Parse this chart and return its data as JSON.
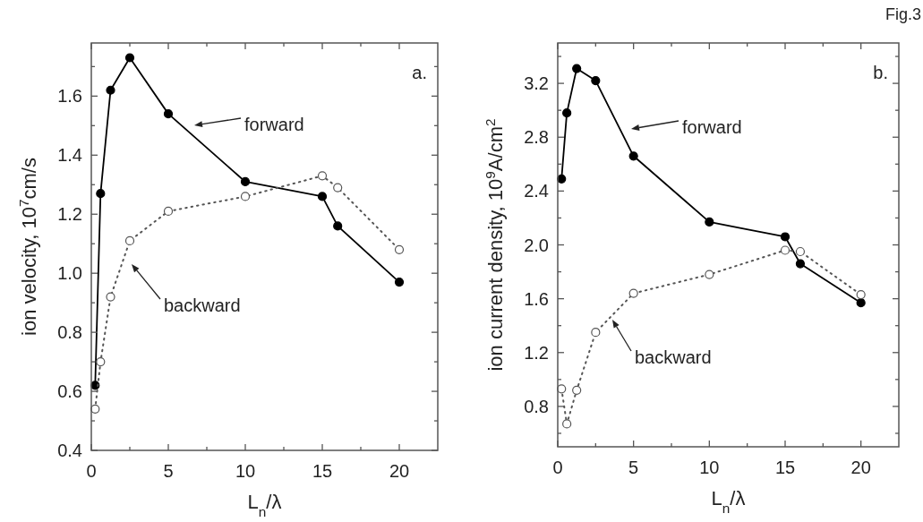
{
  "chart_data": [
    {
      "type": "line",
      "xlabel": "L$_{n}$/λ",
      "ylabel": "ion velocity, 10$^{7}$cm/s",
      "xlim": [
        0,
        22.5
      ],
      "ylim": [
        0.4,
        1.78
      ],
      "xticks": [
        0,
        {
          "value": 2.5,
          "label": null
        },
        5,
        {
          "value": 7.5,
          "label": null
        },
        10,
        {
          "value": 12.5,
          "label": null
        },
        15,
        {
          "value": 17.5,
          "label": null
        },
        20
      ],
      "yticks": [
        {
          "value": 0.4,
          "label": "0.4"
        },
        {
          "value": 0.5,
          "label": null
        },
        {
          "value": 0.6,
          "label": "0.6"
        },
        {
          "value": 0.7,
          "label": null
        },
        {
          "value": 0.8,
          "label": "0.8"
        },
        {
          "value": 0.9,
          "label": null
        },
        {
          "value": 1.0,
          "label": "1.0"
        },
        {
          "value": 1.1,
          "label": null
        },
        {
          "value": 1.2,
          "label": "1.2"
        },
        {
          "value": 1.3,
          "label": null
        },
        {
          "value": 1.4,
          "label": "1.4"
        },
        {
          "value": 1.5,
          "label": null
        },
        {
          "value": 1.6,
          "label": "1.6"
        },
        {
          "value": 1.7,
          "label": null
        }
      ],
      "grid": false,
      "marker": "circle",
      "series": [
        {
          "name": "forward",
          "color": "#000000",
          "line_style": "solid",
          "x": [
            0.25,
            0.6,
            1.25,
            2.5,
            5,
            10,
            15,
            16,
            20
          ],
          "values": [
            0.62,
            1.27,
            1.62,
            1.73,
            1.54,
            1.31,
            1.26,
            1.16,
            0.97
          ]
        },
        {
          "name": "backward",
          "color": "#555555",
          "line_style": "dotted",
          "x": [
            0.25,
            0.6,
            1.25,
            2.5,
            5,
            10,
            15,
            16,
            20
          ],
          "values": [
            0.54,
            0.7,
            0.92,
            1.11,
            1.21,
            1.26,
            1.33,
            1.29,
            1.08
          ]
        }
      ],
      "annotations": [
        "a."
      ]
    },
    {
      "type": "line",
      "xlabel": "L$_{n}$/λ",
      "ylabel": "ion current density, 10$^{9}$A/cm$^{2}$",
      "xlim": [
        0,
        22.5
      ],
      "ylim": [
        0.5,
        3.5
      ],
      "xticks": [
        0,
        {
          "value": 2.5,
          "label": null
        },
        5,
        {
          "value": 7.5,
          "label": null
        },
        10,
        {
          "value": 12.5,
          "label": null
        },
        15,
        {
          "value": 17.5,
          "label": null
        },
        20
      ],
      "yticks": [
        {
          "value": 0.6,
          "label": null
        },
        {
          "value": 0.8,
          "label": "0.8"
        },
        {
          "value": 1.0,
          "label": null
        },
        {
          "value": 1.2,
          "label": "1.2"
        },
        {
          "value": 1.4,
          "label": null
        },
        {
          "value": 1.6,
          "label": "1.6"
        },
        {
          "value": 1.8,
          "label": null
        },
        {
          "value": 2.0,
          "label": "2.0"
        },
        {
          "value": 2.2,
          "label": null
        },
        {
          "value": 2.4,
          "label": "2.4"
        },
        {
          "value": 2.6,
          "label": null
        },
        {
          "value": 2.8,
          "label": "2.8"
        },
        {
          "value": 3.0,
          "label": null
        },
        {
          "value": 3.2,
          "label": "3.2"
        },
        {
          "value": 3.4,
          "label": null
        }
      ],
      "grid": false,
      "marker": "circle",
      "series": [
        {
          "name": "forward",
          "color": "#000000",
          "line_style": "solid",
          "x": [
            0.25,
            0.6,
            1.25,
            2.5,
            5,
            10,
            15,
            16,
            20
          ],
          "values": [
            2.49,
            2.98,
            3.31,
            3.22,
            2.66,
            2.17,
            2.06,
            1.86,
            1.57
          ]
        },
        {
          "name": "backward",
          "color": "#555555",
          "line_style": "dotted",
          "x": [
            0.25,
            0.6,
            1.25,
            2.5,
            5,
            10,
            15,
            16,
            20
          ],
          "values": [
            0.93,
            0.67,
            0.92,
            1.35,
            1.64,
            1.78,
            1.96,
            1.95,
            1.63
          ]
        }
      ],
      "annotations": [
        "b.",
        "Fig.3"
      ]
    }
  ]
}
